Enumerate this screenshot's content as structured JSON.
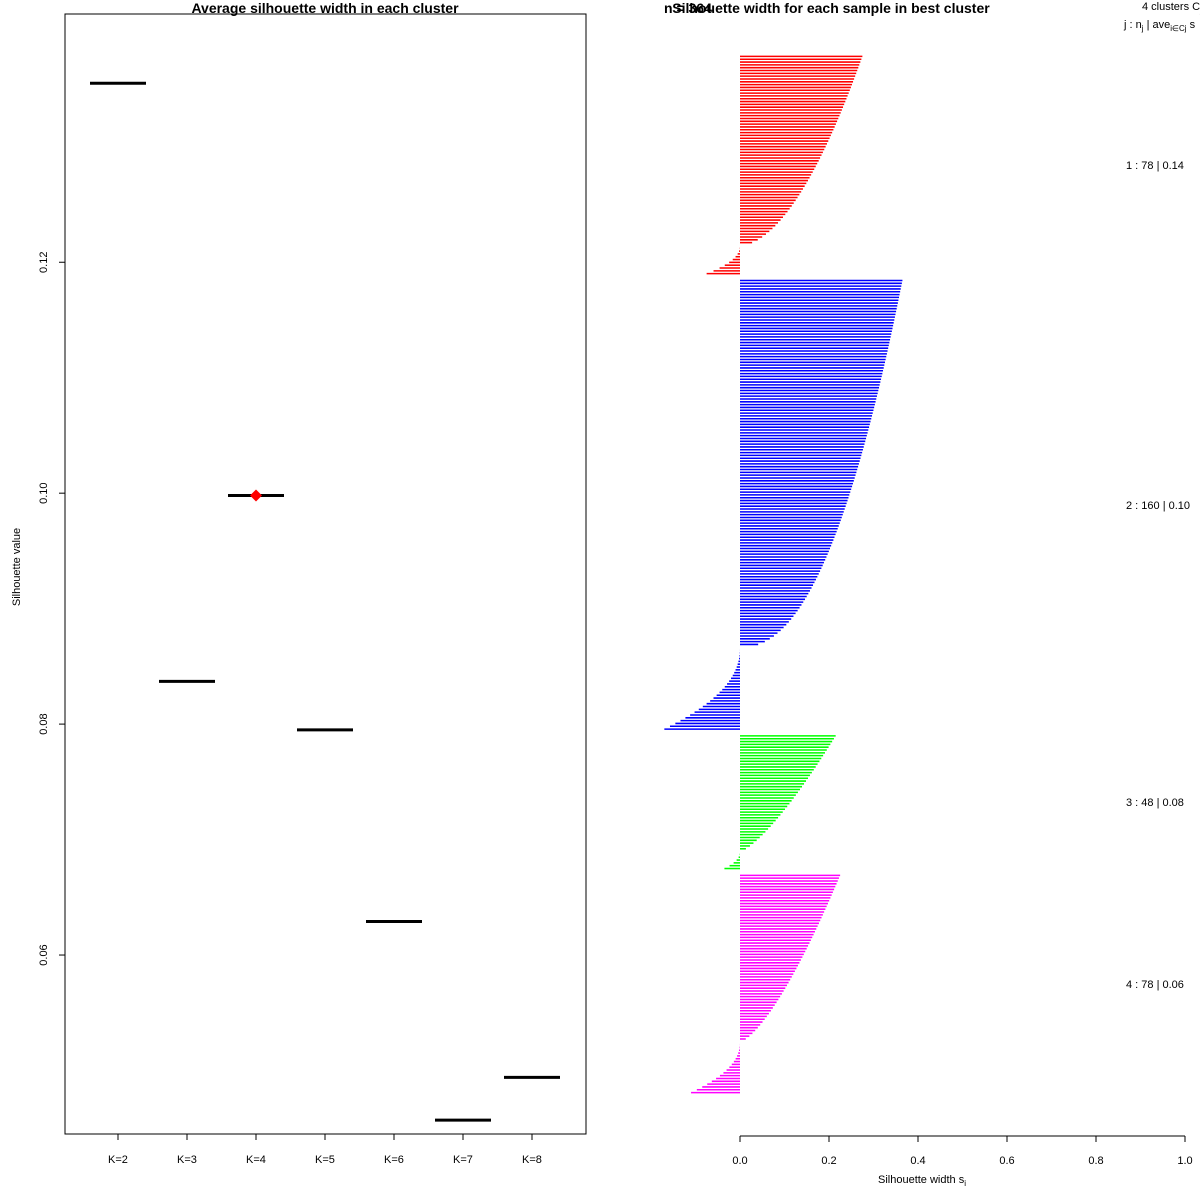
{
  "chart_data": [
    {
      "type": "scatter",
      "title": "Average silhouette width in each cluster",
      "xlabel": "",
      "ylabel": "Silhouette value",
      "ylim": [
        0.0445,
        0.1415
      ],
      "categories": [
        "K=2",
        "K=3",
        "K=4",
        "K=5",
        "K=6",
        "K=7",
        "K=8"
      ],
      "values": [
        0.1355,
        0.0837,
        0.0998,
        0.0795,
        0.0629,
        0.0457,
        0.0494
      ],
      "highlight_index": 2,
      "highlight_color": "#ff0000",
      "yticks": [
        0.06,
        0.08,
        0.1,
        0.12
      ],
      "ytick_labels": [
        "0.06",
        "0.08",
        "0.10",
        "0.12"
      ],
      "grid": false
    },
    {
      "type": "bar",
      "orientation": "horizontal",
      "title": "Silhouette width for each sample in best cluster",
      "overlap_text": "n = 364",
      "xlabel": "Silhouette width s",
      "xlabel_sub": "i",
      "xlim": [
        0.0,
        1.0
      ],
      "xticks": [
        0.0,
        0.2,
        0.4,
        0.6,
        0.8,
        1.0
      ],
      "xtick_labels": [
        "0.0",
        "0.2",
        "0.4",
        "0.6",
        "0.8",
        "1.0"
      ],
      "legend_header": {
        "line1": "4  clusters  C",
        "line1_sub": "j",
        "line2": "j :  n",
        "line2_sub": "j",
        "line2_rest": " | ave",
        "line2_sub2": "i∈Cj",
        "line2_end": "  s"
      },
      "clusters": [
        {
          "id": 1,
          "n": 78,
          "label": "1 :   78  |  0.14",
          "color": "#ff0000",
          "max": 0.275,
          "min": -0.075,
          "neg_frac": 0.13,
          "shape": 0.55
        },
        {
          "id": 2,
          "n": 160,
          "label": "2 :   160  |  0.10",
          "color": "#0000ff",
          "max": 0.365,
          "min": -0.17,
          "neg_frac": 0.18,
          "shape": 0.45
        },
        {
          "id": 3,
          "n": 48,
          "label": "3 :   48  |  0.08",
          "color": "#00ff00",
          "max": 0.215,
          "min": -0.035,
          "neg_frac": 0.12,
          "shape": 0.75
        },
        {
          "id": 4,
          "n": 78,
          "label": "4 :   78  |  0.06",
          "color": "#ff00ff",
          "max": 0.225,
          "min": -0.11,
          "neg_frac": 0.23,
          "shape": 0.7
        }
      ]
    }
  ]
}
